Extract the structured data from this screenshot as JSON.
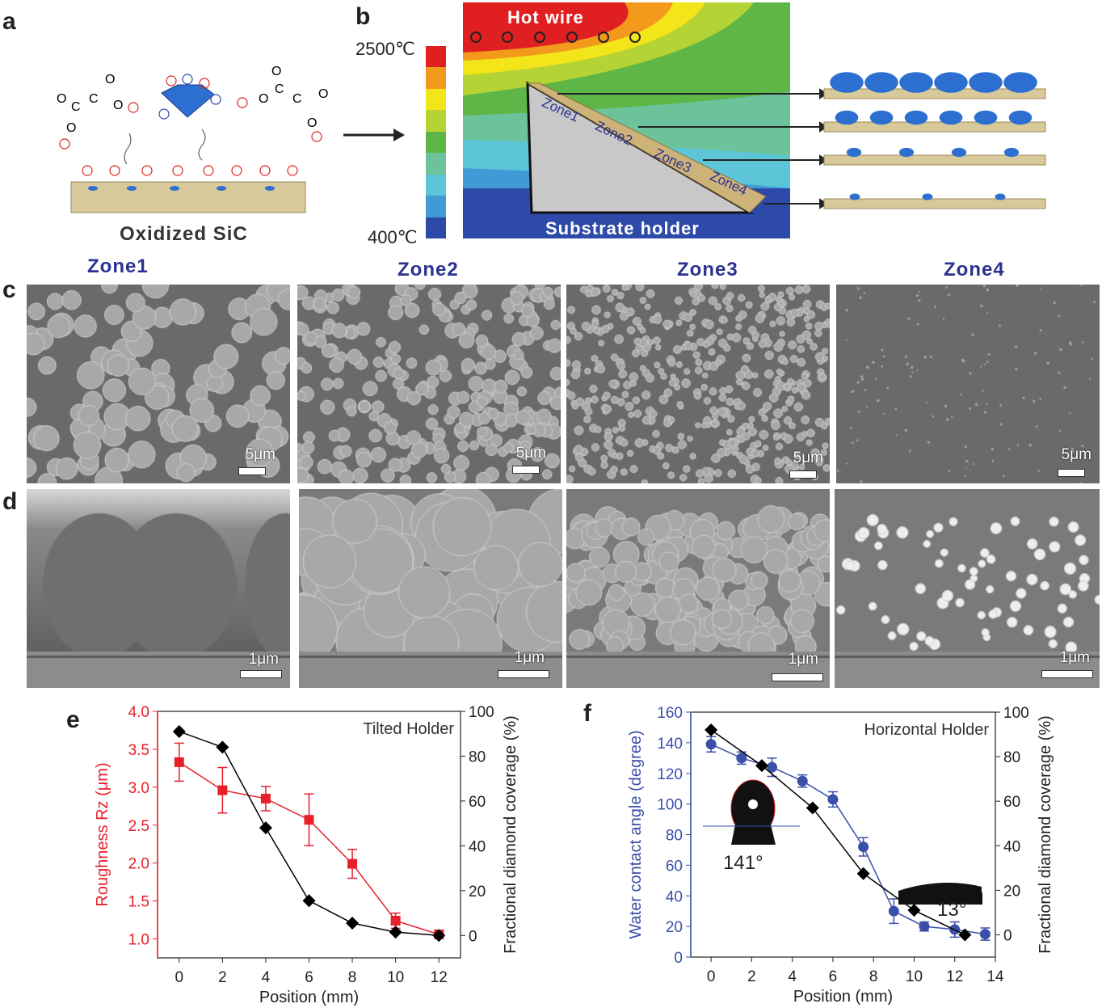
{
  "panel_labels": [
    "a",
    "b",
    "c",
    "d",
    "e",
    "f"
  ],
  "panel_a": {
    "caption": "Oxidized SiC"
  },
  "panel_b": {
    "temp_max": "2500℃",
    "temp_min": "400℃",
    "hot_wire": "Hot wire",
    "substrate_holder": "Substrate holder",
    "zones_on_holder": [
      "Zone1",
      "Zone2",
      "Zone3",
      "Zone4"
    ],
    "colorbar": [
      "#e02020",
      "#f39a1c",
      "#f2e51a",
      "#b5d334",
      "#5db646",
      "#6cc29b",
      "#5cc6d8",
      "#3f9ad6",
      "#2d4aa8"
    ]
  },
  "zones": [
    "Zone1",
    "Zone2",
    "Zone3",
    "Zone4"
  ],
  "row_c_scales": [
    "5μm",
    "5μm",
    "5μm",
    "5μm"
  ],
  "row_d_scales": [
    "1μm",
    "1μm",
    "1μm",
    "1μm"
  ],
  "chart_data": [
    {
      "type": "line",
      "panel": "e",
      "annotation": "Tilted Holder",
      "xlabel": "Position (mm)",
      "ylabel": "Roughness Rz (μm)",
      "y2label": "Fractional diamond coverage (%)",
      "xlim": [
        -1,
        13
      ],
      "ylim": [
        0.75,
        4.0
      ],
      "y2lim": [
        -10,
        100
      ],
      "xticks": [
        "0",
        "2",
        "4",
        "6",
        "8",
        "10",
        "12"
      ],
      "yticks": [
        "1.0",
        "1.5",
        "2.0",
        "2.5",
        "3.0",
        "3.5",
        "4.0"
      ],
      "y2ticks": [
        "0",
        "20",
        "40",
        "60",
        "80",
        "100"
      ],
      "series": [
        {
          "name": "Roughness",
          "axis": "left",
          "color": "#e8202a",
          "marker": "square",
          "x": [
            0,
            2,
            4,
            6,
            8,
            10,
            12
          ],
          "y": [
            3.33,
            2.96,
            2.85,
            2.57,
            1.99,
            1.24,
            1.06
          ],
          "err": [
            0.25,
            0.3,
            0.16,
            0.34,
            0.19,
            0.1,
            0.03
          ]
        },
        {
          "name": "Coverage",
          "axis": "right",
          "color": "#000000",
          "marker": "diamond",
          "x": [
            0,
            2,
            4,
            6,
            8,
            10,
            12
          ],
          "y": [
            91,
            84,
            48,
            15.5,
            5.5,
            1.5,
            0
          ]
        }
      ]
    },
    {
      "type": "line",
      "panel": "f",
      "annotation": "Horizontal Holder",
      "xlabel": "Position (mm)",
      "ylabel": "Water contact angle (degree)",
      "y2label": "Fractional diamond coverage (%)",
      "xlim": [
        -1,
        14
      ],
      "ylim": [
        0,
        160
      ],
      "y2lim": [
        -10,
        100
      ],
      "xticks": [
        "0",
        "2",
        "4",
        "6",
        "8",
        "10",
        "12",
        "14"
      ],
      "yticks": [
        "0",
        "20",
        "40",
        "60",
        "80",
        "100",
        "120",
        "140",
        "160"
      ],
      "y2ticks": [
        "0",
        "20",
        "40",
        "60",
        "80",
        "100"
      ],
      "insets": [
        "141°",
        "13°"
      ],
      "series": [
        {
          "name": "Contact angle",
          "axis": "left",
          "color": "#3a4fa8",
          "marker": "circle",
          "x": [
            0,
            1.5,
            3,
            4.5,
            6,
            7.5,
            9,
            10.5,
            12,
            13.5
          ],
          "y": [
            139,
            130,
            124,
            115,
            103,
            72,
            30,
            20,
            18,
            15
          ],
          "err": [
            5,
            4,
            6,
            4,
            5,
            6,
            8,
            3,
            5,
            4
          ]
        },
        {
          "name": "Coverage",
          "axis": "right",
          "color": "#000000",
          "marker": "diamond",
          "x": [
            0,
            2.5,
            5,
            7.5,
            10,
            12.5
          ],
          "y": [
            92,
            76,
            57,
            27.5,
            11,
            0
          ]
        }
      ]
    }
  ]
}
